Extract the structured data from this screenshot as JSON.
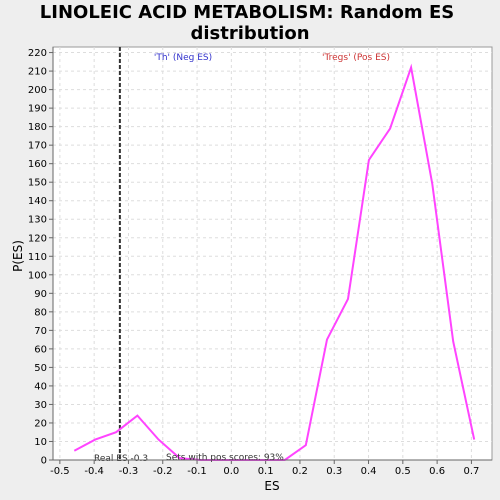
{
  "chart_data": {
    "type": "line",
    "title_line1": "LINOLEIC ACID METABOLISM: Random ES",
    "title_line2": "distribution",
    "xlabel": "ES",
    "ylabel": "P(ES)",
    "xlim": [
      -0.52,
      0.76
    ],
    "ylim": [
      0,
      223
    ],
    "x_ticks": [
      "-0.5",
      "-0.4",
      "-0.3",
      "-0.2",
      "-0.1",
      "0.0",
      "0.1",
      "0.2",
      "0.3",
      "0.4",
      "0.5",
      "0.6",
      "0.7"
    ],
    "y_ticks": [
      "0",
      "10",
      "20",
      "30",
      "40",
      "50",
      "60",
      "70",
      "80",
      "90",
      "100",
      "110",
      "120",
      "130",
      "140",
      "150",
      "160",
      "170",
      "180",
      "190",
      "200",
      "210",
      "220"
    ],
    "grid": true,
    "series": [
      {
        "color": "#ff44ff",
        "x": [
          -0.458,
          -0.397,
          -0.336,
          -0.274,
          -0.212,
          -0.151,
          -0.089,
          -0.028,
          0.033,
          0.095,
          0.156,
          0.217,
          0.279,
          0.34,
          0.401,
          0.463,
          0.524,
          0.586,
          0.647,
          0.708
        ],
        "y": [
          5,
          11,
          15,
          24,
          11,
          1,
          0,
          0,
          0,
          0,
          0,
          8,
          65,
          87,
          162,
          179,
          212,
          149,
          64,
          11
        ]
      }
    ],
    "real_es": -0.325,
    "annotations": {
      "neg_label": "'Th' (Neg ES)",
      "pos_label": "'Tregs' (Pos ES)",
      "real_es_label": "Real ES -0.3",
      "sets_label": "Sets with pos scores: 93%"
    },
    "colors": {
      "neg": "#3333cc",
      "pos": "#cc3333",
      "grid": "#dddddd",
      "plot_bg": "#ffffff",
      "real_es_line": "#333333"
    }
  }
}
